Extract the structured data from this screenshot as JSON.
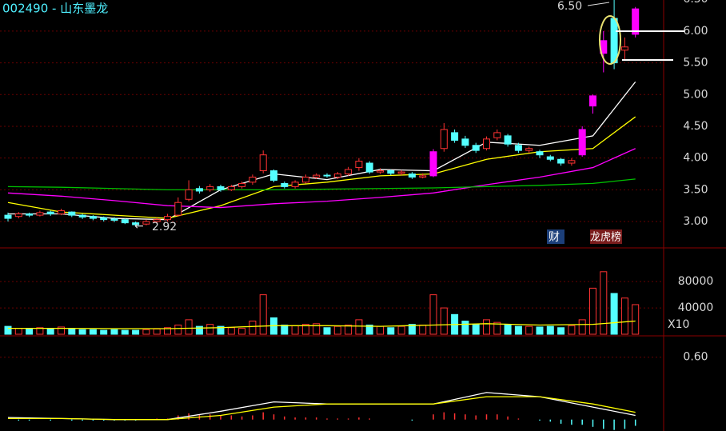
{
  "header": {
    "title": "002490 - 山东墨龙"
  },
  "badges": {
    "finance": "财",
    "ranking": "龙虎榜"
  },
  "chart_data": [
    {
      "type": "candlestick",
      "annotations": [
        {
          "text": "6.50"
        },
        {
          "text": "2.92"
        }
      ],
      "open": [
        3.1,
        3.08,
        3.12,
        3.1,
        3.15,
        3.12,
        3.15,
        3.1,
        3.08,
        3.06,
        3.04,
        3.03,
        2.98,
        2.96,
        3.0,
        3.03,
        3.1,
        3.35,
        3.52,
        3.5,
        3.55,
        3.5,
        3.55,
        3.62,
        3.8,
        3.8,
        3.6,
        3.55,
        3.62,
        3.7,
        3.73,
        3.7,
        3.75,
        3.85,
        3.92,
        3.78,
        3.8,
        3.76,
        3.75,
        3.7,
        3.72,
        4.15,
        4.4,
        4.3,
        4.2,
        4.15,
        4.32,
        4.35,
        4.2,
        4.12,
        4.1,
        4.02,
        3.98,
        3.92,
        4.05,
        4.82,
        5.65,
        6.2,
        5.7,
        5.95
      ],
      "high": [
        3.14,
        3.15,
        3.14,
        3.17,
        3.17,
        3.2,
        3.16,
        3.12,
        3.1,
        3.08,
        3.07,
        3.05,
        3.0,
        3.03,
        3.06,
        3.12,
        3.38,
        3.65,
        3.56,
        3.59,
        3.58,
        3.58,
        3.63,
        3.74,
        4.12,
        3.82,
        3.63,
        3.65,
        3.74,
        3.76,
        3.76,
        3.78,
        3.86,
        4.0,
        3.95,
        3.84,
        3.82,
        3.81,
        3.78,
        3.76,
        4.14,
        4.55,
        4.45,
        4.35,
        4.24,
        4.34,
        4.45,
        4.38,
        4.24,
        4.18,
        4.13,
        4.05,
        4.0,
        4.0,
        4.5,
        5.0,
        6.0,
        6.5,
        5.9,
        6.38
      ],
      "low": [
        3.0,
        3.05,
        3.07,
        3.08,
        3.09,
        3.1,
        3.07,
        3.04,
        3.02,
        3.0,
        2.99,
        2.96,
        2.92,
        2.94,
        2.98,
        3.0,
        3.08,
        3.32,
        3.44,
        3.47,
        3.47,
        3.48,
        3.52,
        3.58,
        3.76,
        3.62,
        3.52,
        3.52,
        3.6,
        3.67,
        3.69,
        3.67,
        3.72,
        3.8,
        3.75,
        3.75,
        3.73,
        3.73,
        3.67,
        3.68,
        3.7,
        4.1,
        4.24,
        4.16,
        4.08,
        4.12,
        4.28,
        4.18,
        4.08,
        4.08,
        4.0,
        3.95,
        3.88,
        3.88,
        4.02,
        4.7,
        5.35,
        5.4,
        5.55,
        5.9
      ],
      "close": [
        3.05,
        3.12,
        3.1,
        3.14,
        3.12,
        3.17,
        3.1,
        3.07,
        3.05,
        3.03,
        3.02,
        2.98,
        2.95,
        3.0,
        3.03,
        3.08,
        3.3,
        3.5,
        3.48,
        3.55,
        3.5,
        3.55,
        3.6,
        3.7,
        4.05,
        3.65,
        3.55,
        3.62,
        3.7,
        3.73,
        3.72,
        3.75,
        3.82,
        3.95,
        3.78,
        3.8,
        3.76,
        3.78,
        3.7,
        3.72,
        4.1,
        4.45,
        4.28,
        4.2,
        4.12,
        4.3,
        4.4,
        4.22,
        4.12,
        4.15,
        4.05,
        3.98,
        3.92,
        3.96,
        4.45,
        4.98,
        5.85,
        5.5,
        5.75,
        6.35
      ],
      "up_color": "#ff3232",
      "down_color": "#54ffff",
      "limit_color": "#ff00ff",
      "series": [
        {
          "color": "#ffffff",
          "x": [
            0,
            5,
            10,
            15,
            20,
            25,
            30,
            35,
            40,
            45,
            50,
            55,
            59
          ],
          "values": [
            3.12,
            3.12,
            3.05,
            3.03,
            3.5,
            3.75,
            3.66,
            3.82,
            3.8,
            4.25,
            4.2,
            4.35,
            5.2
          ]
        },
        {
          "color": "#ffff00",
          "x": [
            0,
            5,
            10,
            15,
            20,
            25,
            30,
            35,
            40,
            45,
            50,
            55,
            59
          ],
          "values": [
            3.3,
            3.15,
            3.1,
            3.05,
            3.25,
            3.55,
            3.62,
            3.72,
            3.75,
            3.98,
            4.1,
            4.15,
            4.65
          ]
        },
        {
          "color": "#ff00ff",
          "x": [
            0,
            5,
            10,
            15,
            20,
            25,
            30,
            35,
            40,
            45,
            50,
            55,
            59
          ],
          "values": [
            3.45,
            3.4,
            3.33,
            3.25,
            3.22,
            3.28,
            3.32,
            3.38,
            3.45,
            3.58,
            3.7,
            3.85,
            4.15
          ]
        },
        {
          "color": "#00c000",
          "x": [
            0,
            5,
            10,
            15,
            20,
            25,
            30,
            35,
            40,
            45,
            50,
            55,
            59
          ],
          "values": [
            3.55,
            3.54,
            3.52,
            3.5,
            3.5,
            3.5,
            3.51,
            3.52,
            3.53,
            3.55,
            3.57,
            3.6,
            3.67
          ]
        }
      ],
      "ylim": [
        2.61,
        6.49
      ],
      "yticks": [
        {
          "value": 3,
          "label": "3.00"
        },
        {
          "value": 3.5,
          "label": "3.50"
        },
        {
          "value": 4,
          "label": "4.00"
        },
        {
          "value": 4.5,
          "label": "4.50"
        },
        {
          "value": 5,
          "label": "5.00"
        },
        {
          "value": 5.5,
          "label": "5.50"
        },
        {
          "value": 6,
          "label": "6.00"
        },
        {
          "value": 6.5,
          "label": "6.50"
        }
      ],
      "grid": true
    },
    {
      "type": "volume",
      "unit_label": "X10",
      "values": [
        12000,
        9000,
        8000,
        10000,
        9000,
        11000,
        8000,
        7000,
        7000,
        6000,
        7000,
        6000,
        6000,
        7000,
        8000,
        10000,
        14000,
        22000,
        12000,
        15000,
        12000,
        10000,
        9000,
        20000,
        60000,
        25000,
        14000,
        13000,
        15000,
        16000,
        10000,
        12000,
        14000,
        22000,
        14000,
        12000,
        10000,
        12000,
        15000,
        14000,
        60000,
        40000,
        30000,
        20000,
        15000,
        22000,
        18000,
        14000,
        12000,
        12000,
        11000,
        12000,
        10000,
        13000,
        22000,
        70000,
        95000,
        62000,
        55000,
        45000
      ],
      "series": [
        {
          "color": "#ffff00",
          "x": [
            0,
            5,
            10,
            15,
            20,
            25,
            30,
            35,
            40,
            45,
            50,
            55,
            59
          ],
          "values": [
            9000,
            9000,
            8500,
            8500,
            10000,
            13000,
            13000,
            12000,
            14000,
            16000,
            14000,
            15000,
            20000
          ]
        }
      ],
      "ylim": [
        0,
        130000
      ],
      "yticks": [
        40000,
        80000
      ],
      "grid": true
    },
    {
      "type": "macd",
      "values": [
        0,
        -0.01,
        -0.01,
        0,
        -0.01,
        0,
        -0.01,
        -0.01,
        -0.01,
        -0.01,
        -0.01,
        -0.01,
        -0.01,
        0,
        0.01,
        0.01,
        0.04,
        0.06,
        0.05,
        0.05,
        0.04,
        0.04,
        0.03,
        0.04,
        0.07,
        0.05,
        0.03,
        0.02,
        0.02,
        0.02,
        0.01,
        0.01,
        0.01,
        0.02,
        0.01,
        0,
        0,
        0,
        -0.01,
        0,
        0.05,
        0.07,
        0.06,
        0.05,
        0.04,
        0.05,
        0.05,
        0.03,
        0.01,
        0,
        -0.01,
        -0.02,
        -0.04,
        -0.05,
        -0.05,
        -0.07,
        -0.09,
        -0.1,
        -0.09,
        -0.06
      ],
      "series": [
        {
          "color": "#ffffff",
          "x": [
            0,
            5,
            10,
            15,
            20,
            25,
            30,
            35,
            40,
            45,
            50,
            55,
            59
          ],
          "values": [
            0.02,
            0.01,
            0,
            0,
            0.08,
            0.17,
            0.15,
            0.15,
            0.15,
            0.26,
            0.22,
            0.12,
            0.04
          ]
        },
        {
          "color": "#ffff00",
          "x": [
            0,
            5,
            10,
            15,
            20,
            25,
            30,
            35,
            40,
            45,
            50,
            55,
            59
          ],
          "values": [
            0.01,
            0.01,
            0,
            0,
            0.04,
            0.12,
            0.15,
            0.15,
            0.15,
            0.22,
            0.22,
            0.15,
            0.07
          ]
        }
      ],
      "ylim": [
        -0.11,
        0.79
      ],
      "yticks": [
        {
          "value": 0.6,
          "label": "0.60"
        }
      ],
      "grid": true
    }
  ]
}
